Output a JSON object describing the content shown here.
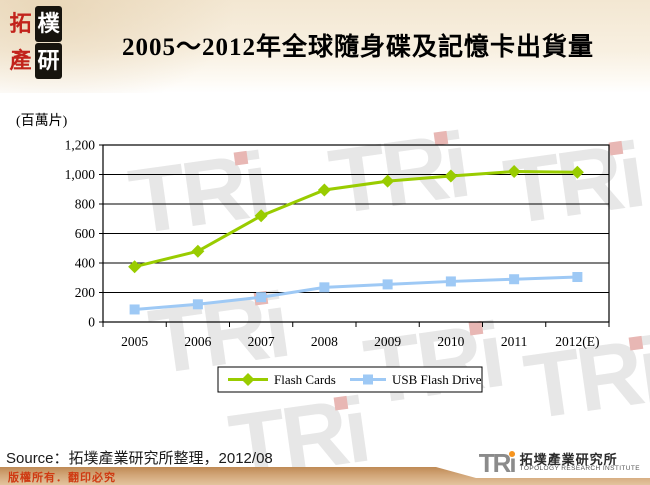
{
  "header": {
    "logo_chars": [
      "拓",
      "樸",
      "產",
      "研"
    ],
    "title": "2005～2012年全球隨身碟及記憶卡出貨量"
  },
  "chart_data": {
    "type": "line",
    "title": "2005～2012年全球隨身碟及記憶卡出貨量",
    "unit_label": "(百萬片)",
    "categories": [
      "2005",
      "2006",
      "2007",
      "2008",
      "2009",
      "2010",
      "2011",
      "2012(E)"
    ],
    "series": [
      {
        "name": "Flash Cards",
        "marker": "diamond",
        "color": "#99cc00",
        "values": [
          375,
          480,
          720,
          895,
          955,
          990,
          1020,
          1015
        ]
      },
      {
        "name": "USB Flash Drive",
        "marker": "square",
        "color": "#9ec9f5",
        "values": [
          85,
          120,
          168,
          235,
          255,
          275,
          290,
          305
        ]
      }
    ],
    "xlabel": "",
    "ylabel": "(百萬片)",
    "ylim": [
      0,
      1200
    ],
    "ytick_step": 200,
    "yticks": [
      "0",
      "200",
      "400",
      "600",
      "800",
      "1,000",
      "1,200"
    ],
    "grid": true,
    "legend_position": "bottom-center"
  },
  "watermark": {
    "text": "TRi"
  },
  "footer": {
    "source": "Source：拓墣產業研究所整理，2012/08",
    "copyright": "版權所有．翻印必究",
    "tri": {
      "abbr": "TRi",
      "cjk": "拓墣產業研究所",
      "en": "TOPOLOGY RESEARCH INSTITUTE"
    }
  }
}
